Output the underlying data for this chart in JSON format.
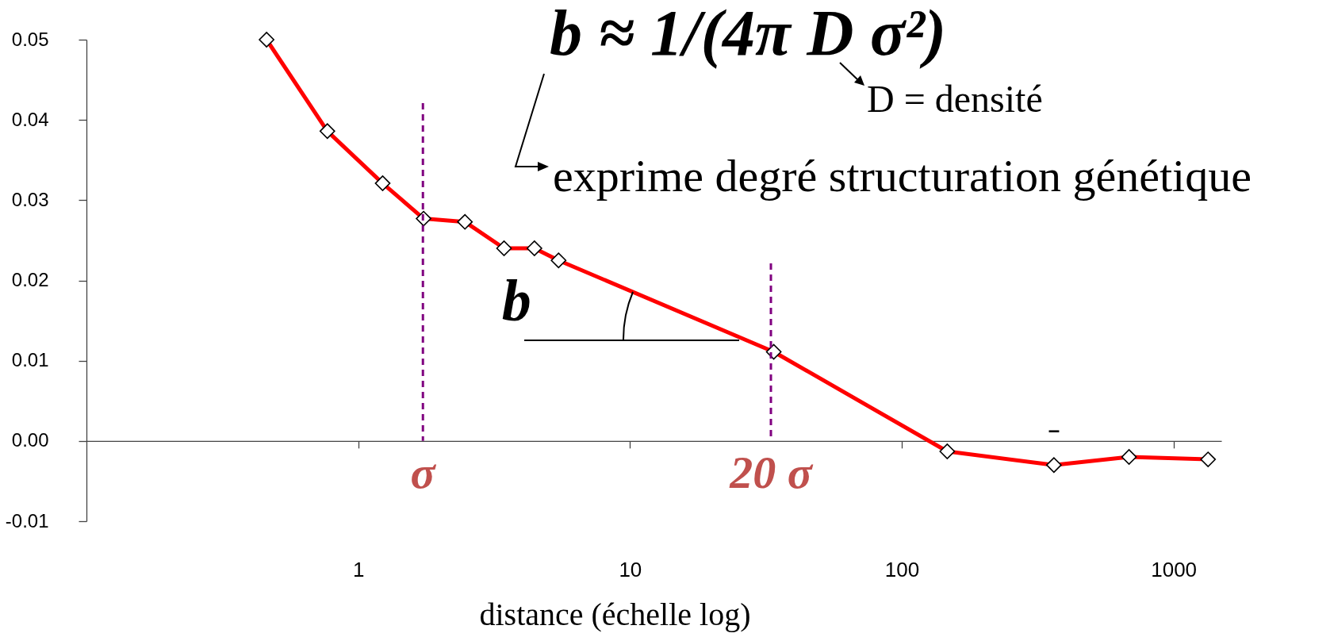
{
  "chart_data": {
    "type": "line",
    "xlabel": "distance (échelle log)",
    "x": [
      0.46,
      0.77,
      1.23,
      1.74,
      2.47,
      3.44,
      4.45,
      5.46,
      33.8,
      147,
      363,
      686,
      1340
    ],
    "series": [
      {
        "color": "#ff0000",
        "values": [
          0.05,
          0.0386,
          0.0321,
          0.0277,
          0.0273,
          0.024,
          0.024,
          0.0225,
          0.0111,
          -0.0013,
          -0.003,
          -0.002,
          -0.0023
        ]
      }
    ],
    "xlim": [
      0.1,
      1500
    ],
    "xticks": [
      1,
      10,
      100,
      1000
    ],
    "ylim": [
      -0.01,
      0.05
    ],
    "yticks": [
      -0.01,
      {
        "value": 0,
        "label": "0.00"
      },
      0.01,
      0.02,
      0.03,
      0.04,
      0.05
    ],
    "log": "x",
    "marker": "diamond",
    "ref_lines": [
      {
        "axis": "x",
        "value": 1.73,
        "label": "σ",
        "color": "#800080",
        "line_style": "dashed"
      },
      {
        "axis": "x",
        "value": 33,
        "label": "20 σ",
        "color": "#800080",
        "line_style": "dashed"
      }
    ],
    "annotations": [
      "b ≈ 1/(4π D σ²)",
      "D = densité",
      "exprime degré structuration génétique",
      {
        "text": "b",
        "x": 25,
        "y": 0.0125
      },
      "–"
    ]
  }
}
